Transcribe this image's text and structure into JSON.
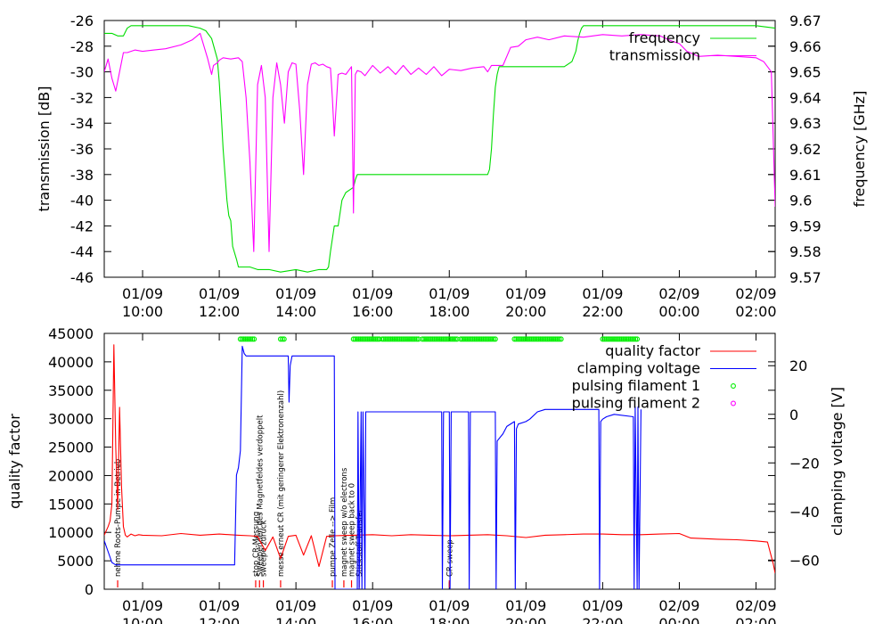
{
  "chart_data": [
    {
      "type": "line",
      "xlabel": "",
      "ylabel": "transmission [dB]",
      "y2label": "frequency [GHz]",
      "ylim": [
        -46,
        -26
      ],
      "y2lim": [
        9.57,
        9.67
      ],
      "xlim_hours": [
        9.0,
        26.5
      ],
      "yticks": [
        "-26",
        "-28",
        "-30",
        "-32",
        "-34",
        "-36",
        "-38",
        "-40",
        "-42",
        "-44",
        "-46"
      ],
      "y2ticks": [
        "9.67",
        "9.66",
        "9.65",
        "9.64",
        "9.63",
        "9.62",
        "9.61",
        "9.6",
        "9.59",
        "9.58",
        "9.57"
      ],
      "xtick_hours": [
        10,
        12,
        14,
        16,
        18,
        20,
        22,
        24,
        26
      ],
      "xtick_dates": [
        "01/09",
        "01/09",
        "01/09",
        "01/09",
        "01/09",
        "01/09",
        "01/09",
        "02/09",
        "02/09"
      ],
      "xtick_times": [
        "10:00",
        "12:00",
        "14:00",
        "16:00",
        "18:00",
        "20:00",
        "22:00",
        "00:00",
        "02:00"
      ],
      "legend_position": "top-right",
      "series": [
        {
          "name": "frequency",
          "axis": "right",
          "color": "#00dd00",
          "x": [
            9.0,
            9.2,
            9.35,
            9.5,
            9.6,
            9.7,
            9.9,
            10.3,
            10.8,
            11.2,
            11.5,
            11.65,
            11.8,
            11.95,
            12.0,
            12.05,
            12.1,
            12.2,
            12.25,
            12.3,
            12.35,
            12.45,
            12.5,
            12.6,
            12.8,
            13.0,
            13.3,
            13.6,
            14.0,
            14.3,
            14.6,
            14.8,
            14.85,
            14.9,
            15.0,
            15.1,
            15.2,
            15.3,
            15.4,
            15.5,
            15.55,
            15.6,
            15.8,
            16.5,
            17.5,
            18.5,
            19.0,
            19.05,
            19.1,
            19.15,
            19.2,
            19.25,
            19.3,
            19.35,
            19.4,
            19.5,
            20.0,
            20.5,
            20.8,
            21.0,
            21.2,
            21.3,
            21.35,
            21.4,
            21.45,
            21.5,
            21.6,
            21.8,
            22.2,
            23.0,
            24.0,
            25.0,
            26.0,
            26.5
          ],
          "y": [
            9.665,
            9.665,
            9.664,
            9.664,
            9.667,
            9.668,
            9.668,
            9.668,
            9.668,
            9.668,
            9.667,
            9.666,
            9.663,
            9.655,
            9.646,
            9.634,
            9.62,
            9.6,
            9.594,
            9.592,
            9.582,
            9.577,
            9.574,
            9.574,
            9.574,
            9.573,
            9.573,
            9.572,
            9.573,
            9.572,
            9.573,
            9.573,
            9.574,
            9.58,
            9.59,
            9.59,
            9.6,
            9.603,
            9.604,
            9.605,
            9.608,
            9.61,
            9.61,
            9.61,
            9.61,
            9.61,
            9.61,
            9.612,
            9.62,
            9.633,
            9.644,
            9.649,
            9.652,
            9.652,
            9.652,
            9.652,
            9.652,
            9.652,
            9.652,
            9.652,
            9.654,
            9.658,
            9.662,
            9.665,
            9.667,
            9.668,
            9.668,
            9.668,
            9.668,
            9.668,
            9.668,
            9.668,
            9.668,
            9.667
          ]
        },
        {
          "name": "transmission",
          "axis": "left",
          "color": "#ff00ff",
          "x": [
            9.0,
            9.1,
            9.2,
            9.3,
            9.4,
            9.5,
            9.6,
            9.8,
            10.0,
            10.3,
            10.6,
            11.0,
            11.3,
            11.5,
            11.6,
            11.7,
            11.8,
            11.85,
            11.95,
            12.0,
            12.1,
            12.3,
            12.5,
            12.6,
            12.7,
            12.8,
            12.9,
            13.0,
            13.1,
            13.2,
            13.3,
            13.4,
            13.5,
            13.6,
            13.7,
            13.8,
            13.9,
            14.0,
            14.1,
            14.2,
            14.3,
            14.4,
            14.5,
            14.6,
            14.7,
            14.8,
            14.9,
            14.95,
            15.0,
            15.1,
            15.2,
            15.3,
            15.4,
            15.45,
            15.5,
            15.55,
            15.6,
            15.7,
            15.8,
            16.0,
            16.2,
            16.4,
            16.6,
            16.8,
            17.0,
            17.2,
            17.4,
            17.6,
            17.8,
            18.0,
            18.3,
            18.6,
            18.9,
            19.0,
            19.1,
            19.2,
            19.4,
            19.6,
            19.8,
            20.0,
            20.3,
            20.6,
            21.0,
            21.5,
            22.0,
            22.5,
            23.0,
            23.5,
            23.8,
            24.0,
            24.2,
            24.5,
            25.0,
            25.5,
            26.0,
            26.2,
            26.4,
            26.5
          ],
          "y": [
            -30,
            -29,
            -30.5,
            -31.5,
            -30,
            -28.5,
            -28.5,
            -28.3,
            -28.4,
            -28.3,
            -28.2,
            -27.9,
            -27.5,
            -27,
            -28,
            -29,
            -30.2,
            -29.5,
            -29.3,
            -29.1,
            -28.9,
            -29.0,
            -28.9,
            -29.2,
            -32,
            -37,
            -44,
            -31,
            -29.5,
            -32,
            -44,
            -32,
            -29.3,
            -31,
            -34,
            -30,
            -29.3,
            -29.4,
            -33,
            -38,
            -31,
            -29.4,
            -29.3,
            -29.5,
            -29.4,
            -29.6,
            -29.7,
            -32,
            -35,
            -30.2,
            -30.1,
            -30.2,
            -29.8,
            -29.6,
            -41,
            -30.2,
            -29.9,
            -30,
            -30.3,
            -29.5,
            -30.1,
            -29.6,
            -30.2,
            -29.5,
            -30.2,
            -29.7,
            -30.2,
            -29.6,
            -30.3,
            -29.8,
            -29.9,
            -29.7,
            -29.6,
            -30.0,
            -29.5,
            -29.5,
            -29.5,
            -28.1,
            -28.0,
            -27.5,
            -27.3,
            -27.5,
            -27.2,
            -27.3,
            -27.1,
            -27.2,
            -27.1,
            -27.2,
            -27.6,
            -27.8,
            -28.4,
            -28.8,
            -28.7,
            -28.8,
            -28.9,
            -29.2,
            -30.0,
            -40.5
          ]
        }
      ]
    },
    {
      "type": "line",
      "xlabel": "",
      "ylabel": "quality factor",
      "y2label": "clamping voltage [V]",
      "ylim": [
        0,
        45000
      ],
      "y2lim": [
        -72,
        33.3
      ],
      "xlim_hours": [
        9.0,
        26.5
      ],
      "yticks": [
        "45000",
        "40000",
        "35000",
        "30000",
        "25000",
        "20000",
        "15000",
        "10000",
        "5000",
        "0"
      ],
      "ytick_values": [
        45000,
        40000,
        35000,
        30000,
        25000,
        20000,
        15000,
        10000,
        5000,
        0
      ],
      "y2ticks": [
        "20",
        "0",
        "−20",
        "−40",
        "−60"
      ],
      "y2tick_values": [
        20,
        0,
        -20,
        -40,
        -60
      ],
      "xtick_hours": [
        10,
        12,
        14,
        16,
        18,
        20,
        22,
        24,
        26
      ],
      "xtick_dates": [
        "01/09",
        "01/09",
        "01/09",
        "01/09",
        "01/09",
        "01/09",
        "01/09",
        "02/09",
        "02/09"
      ],
      "xtick_times": [
        "10:00",
        "12:00",
        "14:00",
        "16:00",
        "18:00",
        "20:00",
        "22:00",
        "00:00",
        "02:00"
      ],
      "legend_position": "top-right",
      "series": [
        {
          "name": "quality factor",
          "axis": "left",
          "color": "#ff0000",
          "x": [
            9.0,
            9.1,
            9.15,
            9.2,
            9.25,
            9.3,
            9.35,
            9.4,
            9.45,
            9.5,
            9.55,
            9.6,
            9.7,
            9.8,
            9.9,
            10.0,
            10.5,
            11.0,
            11.5,
            12.0,
            12.5,
            12.8,
            13.0,
            13.2,
            13.4,
            13.6,
            13.8,
            14.0,
            14.2,
            14.4,
            14.6,
            14.8,
            15.0,
            15.5,
            16.0,
            16.5,
            17.0,
            17.5,
            18.0,
            18.5,
            19.0,
            19.5,
            20.0,
            20.5,
            21.0,
            21.5,
            22.0,
            22.5,
            23.0,
            23.5,
            24.0,
            24.3,
            25.0,
            25.5,
            26.0,
            26.3,
            26.45,
            26.5
          ],
          "y": [
            9500,
            11000,
            12000,
            15000,
            43000,
            25000,
            14000,
            32000,
            18000,
            11000,
            9500,
            9200,
            9700,
            9400,
            9600,
            9500,
            9400,
            9800,
            9500,
            9700,
            9500,
            9400,
            9300,
            6800,
            9200,
            5400,
            9300,
            9500,
            6000,
            9400,
            4000,
            9300,
            9400,
            9500,
            9600,
            9400,
            9600,
            9500,
            9400,
            9500,
            9600,
            9400,
            9100,
            9500,
            9600,
            9700,
            9700,
            9600,
            9600,
            9700,
            9800,
            9000,
            8800,
            8700,
            8500,
            8300,
            4500,
            2800
          ]
        },
        {
          "name": "clamping voltage",
          "axis": "right",
          "color": "#0000ff",
          "x": [
            9.0,
            9.2,
            9.3,
            9.5,
            10,
            11,
            12,
            12.4,
            12.45,
            12.5,
            12.55,
            12.6,
            12.65,
            12.7,
            12.75,
            12.8,
            13,
            13.5,
            13.8,
            13.82,
            13.85,
            13.9,
            14,
            14.5,
            15.0,
            15.02,
            15.03,
            15.6,
            15.62,
            15.65,
            15.7,
            15.72,
            15.75,
            15.8,
            15.82,
            15.85,
            16.5,
            17,
            17.5,
            17.8,
            17.82,
            17.85,
            18.0,
            18.02,
            18.05,
            18.2,
            18.5,
            18.52,
            18.55,
            18.8,
            19,
            19.2,
            19.22,
            19.25,
            19.4,
            19.5,
            19.7,
            19.72,
            19.75,
            19.8,
            20.0,
            20.1,
            20.3,
            20.5,
            21.0,
            21.5,
            21.9,
            21.92,
            21.95,
            22.0,
            22.1,
            22.3,
            22.8,
            22.82,
            22.85,
            22.9,
            22.92,
            22.95,
            23.0
          ],
          "y": [
            -52,
            -61,
            -62,
            -62,
            -62,
            -62,
            -62,
            -62,
            -25,
            -22,
            -15,
            28,
            25,
            24,
            24,
            24,
            24,
            24,
            24,
            5,
            20,
            24,
            24,
            24,
            24,
            -72,
            -72,
            -72,
            1,
            -72,
            1,
            -72,
            1,
            -72,
            1,
            1,
            1,
            1,
            1,
            1,
            -72,
            1,
            1,
            -72,
            1,
            1,
            1,
            -72,
            1,
            1,
            1,
            1,
            -72,
            -11,
            -8,
            -5,
            -3,
            -72,
            -6,
            -4,
            -3,
            -2,
            1,
            2,
            2,
            2,
            2,
            -72,
            -3,
            -2,
            -1,
            0,
            -1,
            -72,
            3,
            -72,
            3,
            -72,
            2
          ]
        }
      ],
      "scatter_series": [
        {
          "name": "pulsing filament 1",
          "color": "#00ee00",
          "y": 44000,
          "intervals": [
            [
              12.55,
              12.95
            ],
            [
              13.6,
              13.7
            ],
            [
              15.5,
              16.2
            ],
            [
              16.25,
              17.2
            ],
            [
              17.3,
              18.2
            ],
            [
              18.3,
              19.2
            ],
            [
              19.7,
              20.95
            ],
            [
              22.0,
              22.9
            ]
          ]
        },
        {
          "name": "pulsing filament 2",
          "color": "#ff00ff",
          "intervals": []
        }
      ],
      "annotations": [
        {
          "x": 9.35,
          "text": "nehme Roots-Pumpe in Betrieb"
        },
        {
          "x": 12.95,
          "text": "stop CR-Messung"
        },
        {
          "x": 13.05,
          "text": "Sweependen des Magnetfeldes verdoppelt"
        },
        {
          "x": 13.15,
          "text": "sweepe zurück"
        },
        {
          "x": 13.6,
          "text": "messe erneut CR (mit geringerer Elektronenzahl)"
        },
        {
          "x": 14.95,
          "text": "pumpe Zelle --> Film"
        },
        {
          "x": 15.25,
          "text": "magnet sweep w/o electrons"
        },
        {
          "x": 15.45,
          "text": "magnet sweep back to 0"
        },
        {
          "x": 15.65,
          "text": "Stickstoff-Transfer"
        },
        {
          "x": 18.0,
          "text": "CR-sweep"
        }
      ]
    }
  ]
}
